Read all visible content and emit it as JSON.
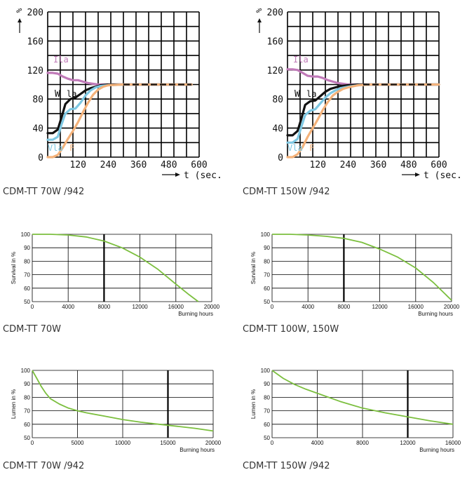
{
  "captions": {
    "c1": "CDM-TT 70W /942",
    "c2": "CDM-TT 150W /942",
    "c3": "CDM-TT 70W",
    "c4": "CDM-TT 100W, 150W",
    "c5": "CDM-TT 70W /942",
    "c6": "CDM-TT 150W /942"
  },
  "colors": {
    "lamp_current": "#c07ab8",
    "power": "#111111",
    "voltage": "#7ec8e3",
    "flux": "#f4b27a",
    "green": "#7cbf3f"
  },
  "chart_data": [
    {
      "type": "line",
      "id": "runup-70",
      "ylabel": "%",
      "xlabel": "t (sec.",
      "x_ticks": [
        120,
        240,
        360,
        480,
        600
      ],
      "y_ticks": [
        0,
        40,
        80,
        120,
        160,
        200
      ],
      "xlim": [
        0,
        600
      ],
      "ylim": [
        0,
        200
      ],
      "series": [
        {
          "name": "Ila",
          "color": "#c07ab8",
          "x": [
            0,
            20,
            40,
            60,
            80,
            100,
            120,
            140,
            160,
            180,
            200,
            240,
            300,
            360,
            420,
            480,
            540,
            570
          ],
          "y": [
            116,
            116,
            115,
            111,
            108,
            106,
            106,
            104,
            102,
            101,
            100,
            100,
            100,
            100,
            100,
            100,
            100,
            100
          ]
        },
        {
          "name": "W",
          "color": "#111111",
          "x": [
            0,
            20,
            40,
            55,
            70,
            90,
            110,
            130,
            150,
            170,
            190,
            210,
            240,
            300,
            360,
            420,
            480,
            540,
            570
          ],
          "y": [
            33,
            33,
            38,
            55,
            73,
            80,
            82,
            87,
            92,
            95,
            97,
            99,
            100,
            100,
            100,
            100,
            100,
            100,
            100
          ]
        },
        {
          "name": "Vla",
          "color": "#7ec8e3",
          "x": [
            0,
            20,
            40,
            55,
            70,
            90,
            110,
            130,
            150,
            170,
            190,
            210,
            240,
            300,
            570
          ],
          "y": [
            24,
            24,
            28,
            45,
            60,
            66,
            67,
            75,
            85,
            92,
            96,
            98,
            99,
            100,
            100
          ]
        },
        {
          "name": "F",
          "color": "#f4b27a",
          "x": [
            0,
            20,
            40,
            60,
            80,
            100,
            120,
            140,
            160,
            180,
            200,
            220,
            240,
            300,
            570
          ],
          "y": [
            0,
            0,
            3,
            13,
            25,
            36,
            48,
            62,
            75,
            86,
            93,
            97,
            99,
            100,
            100
          ]
        }
      ],
      "labels": {
        "ila": "Ila",
        "w": "W",
        "wla": "la",
        "vla": "Vla",
        "f": "F"
      }
    },
    {
      "type": "line",
      "id": "runup-150",
      "ylabel": "%",
      "xlabel": "t (sec.",
      "x_ticks": [
        120,
        240,
        360,
        480,
        600
      ],
      "y_ticks": [
        0,
        40,
        80,
        120,
        160,
        200
      ],
      "xlim": [
        0,
        600
      ],
      "ylim": [
        0,
        200
      ],
      "series": [
        {
          "name": "Ila",
          "color": "#c07ab8",
          "x": [
            0,
            20,
            40,
            60,
            80,
            100,
            120,
            140,
            160,
            180,
            200,
            240,
            280,
            330,
            400,
            500,
            600
          ],
          "y": [
            121,
            121,
            120,
            116,
            112,
            111,
            111,
            109,
            106,
            104,
            102,
            100,
            100,
            100,
            100,
            100,
            100
          ]
        },
        {
          "name": "W",
          "color": "#111111",
          "x": [
            0,
            20,
            40,
            55,
            70,
            90,
            110,
            130,
            150,
            170,
            190,
            210,
            240,
            280,
            330,
            400,
            500,
            600
          ],
          "y": [
            30,
            30,
            36,
            53,
            72,
            77,
            78,
            84,
            90,
            94,
            96,
            98,
            99,
            100,
            100,
            100,
            100,
            100
          ]
        },
        {
          "name": "Vla",
          "color": "#7ec8e3",
          "x": [
            0,
            20,
            40,
            55,
            70,
            90,
            110,
            130,
            150,
            170,
            190,
            210,
            240,
            280,
            330,
            600
          ],
          "y": [
            20,
            20,
            25,
            42,
            58,
            64,
            66,
            74,
            82,
            88,
            92,
            95,
            97,
            99,
            100,
            100
          ]
        },
        {
          "name": "F",
          "color": "#f4b27a",
          "x": [
            0,
            20,
            40,
            60,
            80,
            100,
            120,
            140,
            160,
            180,
            200,
            220,
            240,
            280,
            330,
            600
          ],
          "y": [
            0,
            0,
            4,
            14,
            28,
            40,
            52,
            65,
            76,
            85,
            90,
            94,
            96,
            99,
            100,
            100
          ]
        }
      ],
      "labels": {
        "ila": "Ila",
        "w": "W",
        "wla": "la",
        "vla": "Vla",
        "f": "F"
      }
    },
    {
      "type": "line",
      "id": "survival-70",
      "ylabel": "Survival in %",
      "xlabel": "Burning hours",
      "x_ticks": [
        0,
        4000,
        8000,
        12000,
        16000,
        20000
      ],
      "y_ticks": [
        50,
        60,
        70,
        80,
        90,
        100
      ],
      "xlim": [
        0,
        20000
      ],
      "ylim": [
        50,
        100
      ],
      "series": [
        {
          "color": "#7cbf3f",
          "x": [
            0,
            2000,
            4000,
            6000,
            8000,
            10000,
            12000,
            14000,
            16000,
            17500,
            18500
          ],
          "y": [
            100,
            100,
            99.5,
            98,
            95,
            90,
            83,
            74,
            63,
            55,
            50
          ]
        }
      ]
    },
    {
      "type": "line",
      "id": "survival-150",
      "ylabel": "Survival in %",
      "xlabel": "Burning hours",
      "x_ticks": [
        0,
        4000,
        8000,
        12000,
        16000,
        20000
      ],
      "y_ticks": [
        50,
        60,
        70,
        80,
        90,
        100
      ],
      "xlim": [
        0,
        20000
      ],
      "ylim": [
        50,
        100
      ],
      "series": [
        {
          "color": "#7cbf3f",
          "x": [
            0,
            2000,
            4000,
            6000,
            8000,
            10000,
            12000,
            14000,
            16000,
            18000,
            20000
          ],
          "y": [
            100,
            100,
            99.5,
            98.5,
            97,
            94,
            89,
            83,
            75,
            64,
            51
          ]
        }
      ]
    },
    {
      "type": "line",
      "id": "lumen-70",
      "ylabel": "Lumen in %",
      "xlabel": "Burning hours",
      "x_ticks": [
        0,
        5000,
        10000,
        15000,
        20000
      ],
      "y_ticks": [
        50,
        60,
        70,
        80,
        90,
        100
      ],
      "xlim": [
        0,
        20000
      ],
      "ylim": [
        50,
        100
      ],
      "series": [
        {
          "color": "#7cbf3f",
          "x": [
            0,
            500,
            1000,
            1500,
            2000,
            3000,
            4000,
            5000,
            6000,
            8000,
            10000,
            12000,
            14000,
            16000,
            18000,
            20000
          ],
          "y": [
            100,
            94,
            88,
            83,
            79,
            75,
            72,
            70,
            68.5,
            66,
            63.5,
            61.5,
            60,
            58.5,
            57,
            55
          ]
        }
      ]
    },
    {
      "type": "line",
      "id": "lumen-150",
      "ylabel": "Lumen in %",
      "xlabel": "Burning hours",
      "x_ticks": [
        0,
        4000,
        8000,
        12000,
        16000
      ],
      "y_ticks": [
        50,
        60,
        70,
        80,
        90,
        100
      ],
      "xlim": [
        0,
        16000
      ],
      "ylim": [
        50,
        100
      ],
      "series": [
        {
          "color": "#7cbf3f",
          "x": [
            0,
            1000,
            2000,
            3000,
            4000,
            6000,
            8000,
            10000,
            12000,
            14000,
            16000
          ],
          "y": [
            100,
            94,
            89.5,
            86,
            83,
            77,
            72,
            68.5,
            65.5,
            62.5,
            60
          ]
        }
      ]
    }
  ]
}
